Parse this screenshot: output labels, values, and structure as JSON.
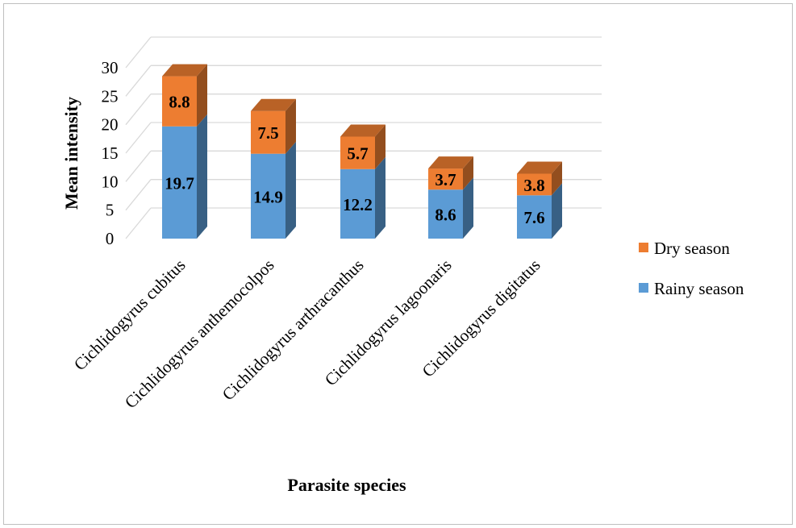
{
  "chart_data": {
    "type": "bar",
    "stacked": true,
    "three_d": true,
    "categories": [
      "Cichlidogyrus cubitus",
      "Cichlidogyrus anthemocolpos",
      "Cichlidogyrus arthracanthus",
      "Cichlidogyrus lagoonaris",
      "Cichlidogyrus digitatus"
    ],
    "series": [
      {
        "name": "Rainy season",
        "values": [
          19.7,
          14.9,
          12.2,
          8.6,
          7.6
        ],
        "color": "#5b9bd5",
        "labels": [
          "19.7",
          "14.9",
          "12.2",
          "8.6",
          "7.6"
        ]
      },
      {
        "name": "Dry season",
        "values": [
          8.8,
          7.5,
          5.7,
          3.7,
          3.8
        ],
        "color": "#ed7d31",
        "labels": [
          "8.8",
          "7.5",
          "5.7",
          "3.7",
          "3.8"
        ]
      }
    ],
    "xlabel": "Parasite species",
    "ylabel": "Mean intensity",
    "ylim": [
      0,
      30
    ],
    "yticks": [
      "0",
      "5",
      "10",
      "15",
      "20",
      "25",
      "30"
    ],
    "grid": true,
    "legend": {
      "position": "right",
      "entries": [
        "Dry season",
        "Rainy season"
      ]
    }
  }
}
